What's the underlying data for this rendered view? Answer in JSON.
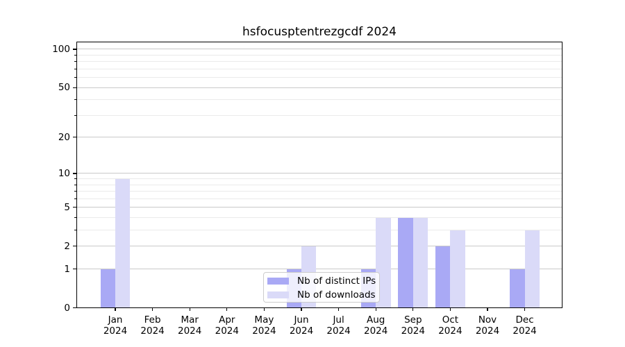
{
  "title": "hsfocusptentrezgcdf 2024",
  "legend": {
    "items": [
      {
        "label": "Nb of distinct IPs",
        "color": "#a9a9f5"
      },
      {
        "label": "Nb of downloads",
        "color": "#dadaf8"
      }
    ]
  },
  "chart_data": {
    "type": "bar",
    "title": "hsfocusptentrezgcdf 2024",
    "categories": [
      "Jan 2024",
      "Feb 2024",
      "Mar 2024",
      "Apr 2024",
      "May 2024",
      "Jun 2024",
      "Jul 2024",
      "Aug 2024",
      "Sep 2024",
      "Oct 2024",
      "Nov 2024",
      "Dec 2024"
    ],
    "series": [
      {
        "name": "Nb of distinct IPs",
        "color": "#a9a9f5",
        "values": [
          1,
          0,
          0,
          0,
          0,
          1,
          0,
          1,
          4,
          2,
          0,
          1
        ]
      },
      {
        "name": "Nb of downloads",
        "color": "#dadaf8",
        "values": [
          9,
          0,
          0,
          0,
          0,
          2,
          0,
          4,
          4,
          3,
          0,
          3
        ]
      }
    ],
    "xlabel": "",
    "ylabel": "",
    "y_scale": "log10(1+y)",
    "y_major_ticks": [
      0,
      1,
      2,
      5,
      10,
      20,
      50,
      100
    ],
    "y_minor_ticks": [
      3,
      4,
      6,
      7,
      8,
      9,
      30,
      40,
      60,
      70,
      80,
      90
    ],
    "ylim": [
      0,
      115
    ],
    "grid": true,
    "legend_position": "lower center",
    "colors": {
      "grid_major": "#c9c9c9",
      "grid_minor": "#eaeaea",
      "axis": "#000000",
      "background": "#ffffff"
    }
  }
}
